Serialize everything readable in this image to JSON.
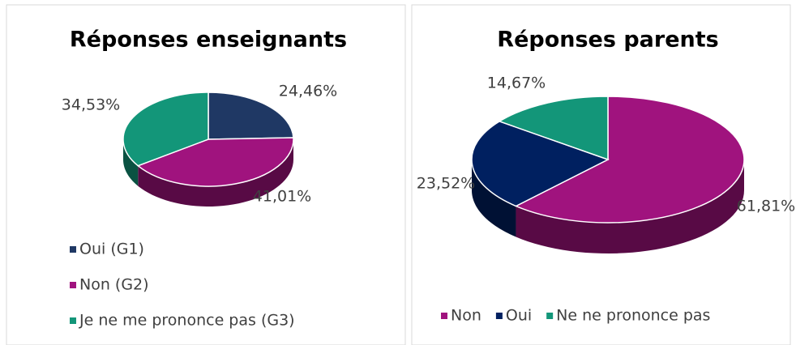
{
  "chart_data": [
    {
      "type": "pie",
      "title": "Réponses enseignants",
      "categories": [
        "Oui (G1)",
        "Non (G2)",
        "Je ne me prononce pas (G3)"
      ],
      "values": [
        24.46,
        41.01,
        34.53
      ],
      "value_labels": [
        "24,46%",
        "41,01%",
        "34,53%"
      ],
      "colors": [
        "#1f3864",
        "#a0137e",
        "#139679"
      ],
      "legend": "bottom"
    },
    {
      "type": "pie",
      "title": "Réponses parents",
      "categories": [
        "Non",
        "Oui",
        "Ne ne prononce pas"
      ],
      "values": [
        61.81,
        23.52,
        14.67
      ],
      "value_labels": [
        "61,81%",
        "23,52%",
        "14,67%"
      ],
      "colors": [
        "#a0137e",
        "#002060",
        "#139679"
      ],
      "legend": "bottom"
    }
  ]
}
